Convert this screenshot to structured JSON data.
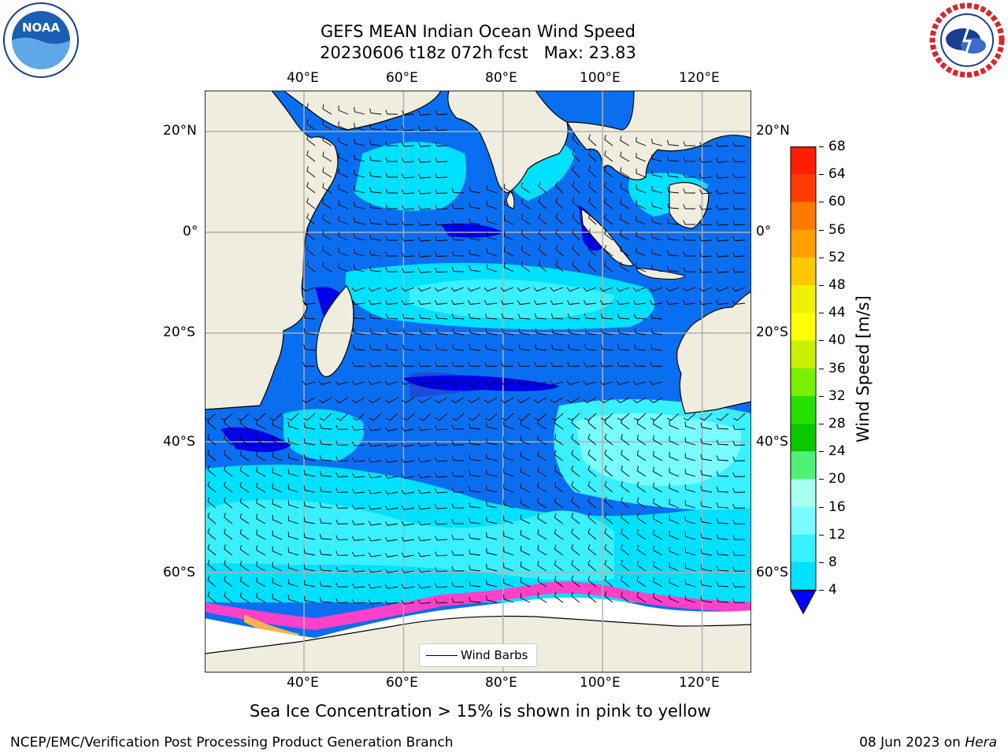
{
  "title": {
    "line1": "GEFS MEAN Indian Ocean Wind Speed",
    "line2": "20230606 t18z 072h fcst   Max: 23.83"
  },
  "map": {
    "lon_ticks": [
      "40°E",
      "60°E",
      "80°E",
      "100°E",
      "120°E"
    ],
    "lon_values": [
      40,
      60,
      80,
      100,
      120
    ],
    "lat_ticks": [
      "20°N",
      "0°",
      "20°S",
      "40°S",
      "60°S"
    ],
    "lat_values": [
      20,
      0,
      -20,
      -40,
      -60
    ],
    "legend_label": "Wind Barbs",
    "land_color": "#efedde",
    "grid": true
  },
  "colorbar": {
    "label": "Wind Speed [m/s]",
    "levels": [
      "4",
      "8",
      "12",
      "16",
      "20",
      "24",
      "28",
      "32",
      "36",
      "40",
      "44",
      "48",
      "52",
      "56",
      "60",
      "64",
      "68"
    ],
    "colors": [
      "#0a6ef0",
      "#00e1ff",
      "#38f0ff",
      "#78fcff",
      "#a8fff0",
      "#50f078",
      "#0ac800",
      "#28e000",
      "#78f000",
      "#c8f000",
      "#ffff00",
      "#f0f000",
      "#ffc800",
      "#ffa000",
      "#ff7800",
      "#ff3c00",
      "#ff1e00",
      "#ff0000"
    ],
    "extend_color": "#0000ff"
  },
  "subtitle": "Sea Ice Concentration > 15% is shown in pink to yellow",
  "footer": {
    "left": "NCEP/EMC/Verification Post Processing Product Generation Branch",
    "date": "08 Jun 2023 on ",
    "host": "Hera"
  },
  "logos": {
    "left_text": "NOAA",
    "right_text": "NATIONAL WEATHER SERVICE"
  }
}
